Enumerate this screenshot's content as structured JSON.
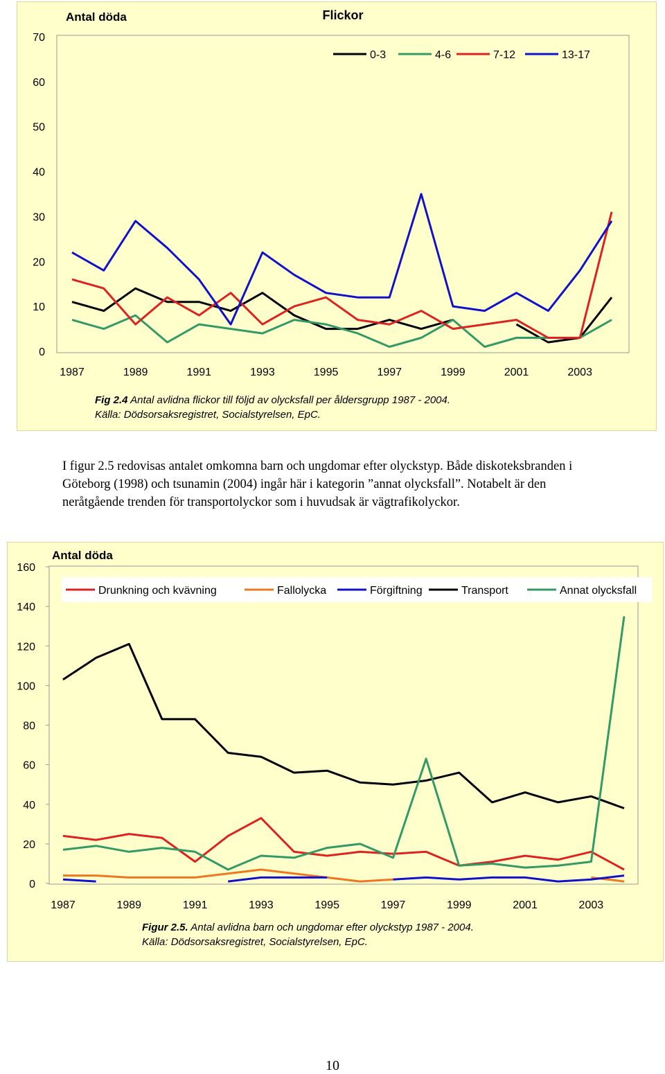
{
  "chart_data": [
    {
      "type": "line",
      "title": "Flickor",
      "ylabel": "Antal döda",
      "xlabel": "",
      "x": [
        1987,
        1988,
        1989,
        1990,
        1991,
        1992,
        1993,
        1994,
        1995,
        1996,
        1997,
        1998,
        1999,
        2000,
        2001,
        2002,
        2003,
        2004
      ],
      "x_ticks": [
        "1987",
        "1989",
        "1991",
        "1993",
        "1995",
        "1997",
        "1999",
        "2001",
        "2003"
      ],
      "y_ticks": [
        "0",
        "10",
        "20",
        "30",
        "40",
        "50",
        "60",
        "70"
      ],
      "ylim": [
        0,
        70
      ],
      "grid": false,
      "legend": "top-right",
      "series": [
        {
          "name": "0-3",
          "color": "#000000",
          "values": [
            11,
            9,
            14,
            11,
            11,
            9,
            13,
            8,
            5,
            5,
            7,
            5,
            7,
            null,
            6,
            2,
            3,
            12
          ]
        },
        {
          "name": "4-6",
          "color": "#339966",
          "values": [
            7,
            5,
            8,
            2,
            6,
            5,
            4,
            7,
            6,
            4,
            1,
            3,
            7,
            1,
            3,
            3,
            3,
            7
          ]
        },
        {
          "name": "7-12",
          "color": "#dd2222",
          "values": [
            16,
            14,
            6,
            12,
            8,
            13,
            6,
            10,
            12,
            7,
            6,
            9,
            5,
            6,
            7,
            3,
            3,
            31
          ]
        },
        {
          "name": "13-17",
          "color": "#1111cc",
          "values": [
            22,
            18,
            29,
            23,
            16,
            6,
            22,
            17,
            13,
            12,
            12,
            35,
            10,
            9,
            13,
            9,
            18,
            29
          ]
        }
      ]
    },
    {
      "type": "line",
      "title": "",
      "ylabel": "Antal döda",
      "xlabel": "",
      "x": [
        1987,
        1988,
        1989,
        1990,
        1991,
        1992,
        1993,
        1994,
        1995,
        1996,
        1997,
        1998,
        1999,
        2000,
        2001,
        2002,
        2003,
        2004
      ],
      "x_ticks": [
        "1987",
        "1989",
        "1991",
        "1993",
        "1995",
        "1997",
        "1999",
        "2001",
        "2003"
      ],
      "y_ticks": [
        "0",
        "20",
        "40",
        "60",
        "80",
        "100",
        "120",
        "140",
        "160"
      ],
      "ylim": [
        0,
        160
      ],
      "grid": false,
      "legend": "top",
      "series": [
        {
          "name": "Drunkning och kvävning",
          "color": "#dd2222",
          "values": [
            24,
            22,
            25,
            23,
            11,
            24,
            33,
            16,
            14,
            16,
            15,
            16,
            9,
            11,
            14,
            12,
            16,
            7
          ]
        },
        {
          "name": "Fallolycka",
          "color": "#ee7722",
          "values": [
            4,
            4,
            3,
            3,
            3,
            5,
            7,
            5,
            3,
            1,
            2,
            null,
            null,
            null,
            null,
            null,
            3,
            1
          ]
        },
        {
          "name": "Förgiftning",
          "color": "#1111cc",
          "values": [
            2,
            1,
            null,
            null,
            null,
            1,
            3,
            3,
            3,
            null,
            2,
            3,
            2,
            3,
            3,
            1,
            2,
            4
          ]
        },
        {
          "name": "Transport",
          "color": "#000000",
          "values": [
            103,
            114,
            121,
            83,
            83,
            66,
            64,
            56,
            57,
            51,
            50,
            52,
            56,
            41,
            46,
            41,
            44,
            38
          ]
        },
        {
          "name": "Annat olycksfall",
          "color": "#339966",
          "values": [
            17,
            19,
            16,
            18,
            16,
            7,
            14,
            13,
            18,
            20,
            13,
            63,
            9,
            10,
            8,
            9,
            11,
            135
          ]
        }
      ]
    }
  ],
  "captions": {
    "fig1_label": "Fig 2.4",
    "fig1_text": " Antal avlidna flickor till följd av olycksfall per åldersgrupp 1987 - 2004.",
    "fig1_source": "Källa: Dödsorsaksregistret, Socialstyrelsen, EpC.",
    "fig2_label": "Figur 2.5.",
    "fig2_text": " Antal avlidna barn och ungdomar efter olyckstyp 1987 - 2004.",
    "fig2_source": "Källa: Dödsorsaksregistret, Socialstyrelsen, EpC."
  },
  "body_text": "I figur 2.5 redovisas antalet omkomna barn och ungdomar efter olyckstyp. Både diskoteksbranden i Göteborg (1998) och tsunamin (2004) ingår här i kategorin ”annat olycksfall”. Notabelt är den neråtgående trenden för transportolyckor som i huvudsak är vägtrafikolyckor.",
  "page_number": "10"
}
